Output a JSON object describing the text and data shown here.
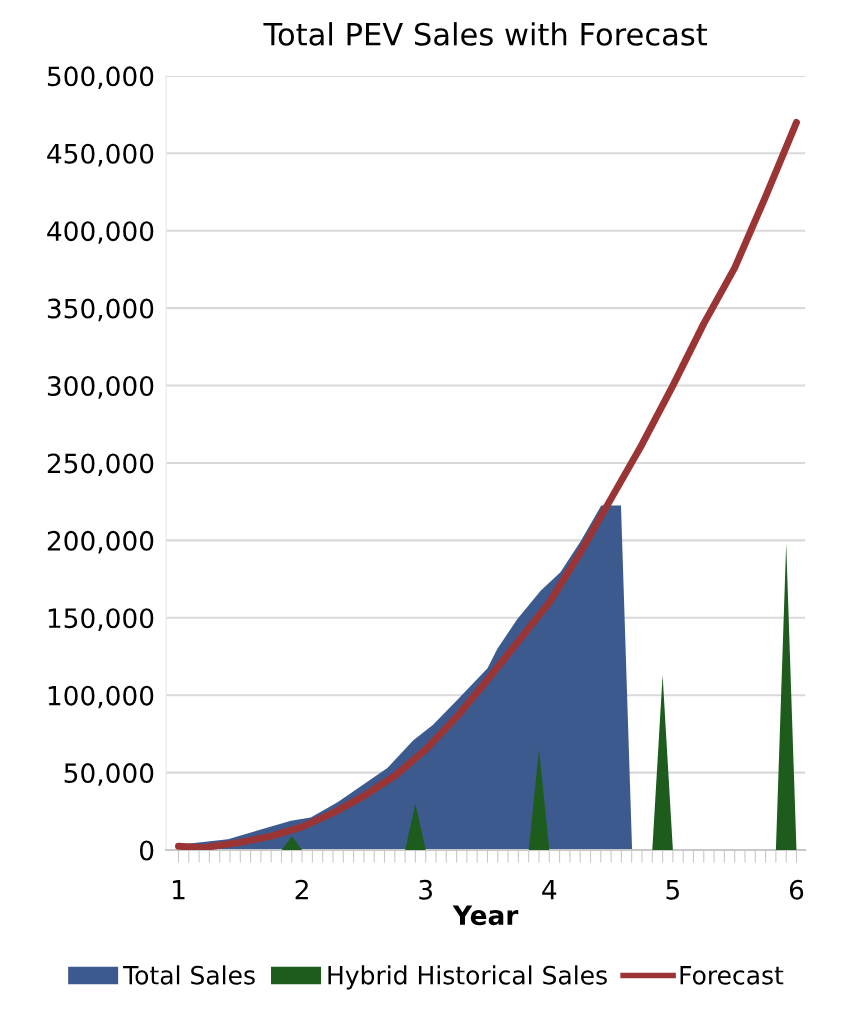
{
  "chart_data": {
    "type": "area",
    "title": "Total PEV Sales with Forecast",
    "xlabel": "Year",
    "series": [
      {
        "name": "Total Sales",
        "color": "#3d5a8f",
        "x": [
          1,
          1.4,
          1.91,
          2.07,
          2.29,
          2.69,
          2.9,
          3.06,
          3.28,
          3.5,
          3.58,
          3.74,
          3.93,
          4.09,
          4.25,
          4.42,
          4.58,
          4.67
        ],
        "values": [
          3500,
          7000,
          19000,
          21000,
          31000,
          53000,
          71000,
          81000,
          99000,
          117500,
          130000,
          149000,
          167500,
          179500,
          199000,
          222500,
          222500,
          0
        ]
      },
      {
        "name": "Hybrid Historical Sales",
        "color": "#1e5c1e",
        "x": [
          1.8333,
          1.9167,
          2.0,
          2.8333,
          2.9167,
          3.0,
          3.8333,
          3.9167,
          4.0,
          4.8333,
          4.9167,
          5.0,
          5.8333,
          5.9167,
          6.0
        ],
        "values": [
          0,
          9000,
          0,
          0,
          30000,
          0,
          0,
          65000,
          0,
          0,
          113000,
          0,
          0,
          198000,
          0
        ]
      },
      {
        "name": "Forecast",
        "type": "line",
        "color": "#9b3535",
        "x": [
          1,
          1.2,
          1.5,
          1.75,
          2,
          2.25,
          2.5,
          2.75,
          3,
          3.25,
          3.5,
          3.75,
          4,
          4.25,
          4.5,
          4.75,
          5,
          5.25,
          5.5,
          5.75,
          6
        ],
        "values": [
          2500,
          1500,
          5000,
          9000,
          15000,
          24000,
          35000,
          48000,
          65000,
          86000,
          110000,
          135000,
          160000,
          192000,
          227000,
          262000,
          300000,
          340000,
          376000,
          422000,
          470000
        ]
      }
    ],
    "xlim": [
      0.9,
      6.07
    ],
    "xticks": [
      1,
      {
        "value": 1.0833,
        "label": null
      },
      {
        "value": 1.1667,
        "label": null
      },
      {
        "value": 1.25,
        "label": null
      },
      {
        "value": 1.3333,
        "label": null
      },
      {
        "value": 1.4167,
        "label": null
      },
      {
        "value": 1.5,
        "label": null
      },
      {
        "value": 1.5833,
        "label": null
      },
      {
        "value": 1.6667,
        "label": null
      },
      {
        "value": 1.75,
        "label": null
      },
      {
        "value": 1.8333,
        "label": null
      },
      {
        "value": 1.9167,
        "label": null
      },
      2,
      {
        "value": 2.0833,
        "label": null
      },
      {
        "value": 2.1667,
        "label": null
      },
      {
        "value": 2.25,
        "label": null
      },
      {
        "value": 2.3333,
        "label": null
      },
      {
        "value": 2.4167,
        "label": null
      },
      {
        "value": 2.5,
        "label": null
      },
      {
        "value": 2.5833,
        "label": null
      },
      {
        "value": 2.6667,
        "label": null
      },
      {
        "value": 2.75,
        "label": null
      },
      {
        "value": 2.8333,
        "label": null
      },
      {
        "value": 2.9167,
        "label": null
      },
      3,
      {
        "value": 3.0833,
        "label": null
      },
      {
        "value": 3.1667,
        "label": null
      },
      {
        "value": 3.25,
        "label": null
      },
      {
        "value": 3.3333,
        "label": null
      },
      {
        "value": 3.4167,
        "label": null
      },
      {
        "value": 3.5,
        "label": null
      },
      {
        "value": 3.5833,
        "label": null
      },
      {
        "value": 3.6667,
        "label": null
      },
      {
        "value": 3.75,
        "label": null
      },
      {
        "value": 3.8333,
        "label": null
      },
      {
        "value": 3.9167,
        "label": null
      },
      4,
      {
        "value": 4.0833,
        "label": null
      },
      {
        "value": 4.1667,
        "label": null
      },
      {
        "value": 4.25,
        "label": null
      },
      {
        "value": 4.3333,
        "label": null
      },
      {
        "value": 4.4167,
        "label": null
      },
      {
        "value": 4.5,
        "label": null
      },
      {
        "value": 4.5833,
        "label": null
      },
      {
        "value": 4.6667,
        "label": null
      },
      {
        "value": 4.75,
        "label": null
      },
      {
        "value": 4.8333,
        "label": null
      },
      {
        "value": 4.9167,
        "label": null
      },
      5,
      {
        "value": 5.0833,
        "label": null
      },
      {
        "value": 5.1667,
        "label": null
      },
      {
        "value": 5.25,
        "label": null
      },
      {
        "value": 5.3333,
        "label": null
      },
      {
        "value": 5.4167,
        "label": null
      },
      {
        "value": 5.5,
        "label": null
      },
      {
        "value": 5.5833,
        "label": null
      },
      {
        "value": 5.6667,
        "label": null
      },
      {
        "value": 5.75,
        "label": null
      },
      {
        "value": 5.8333,
        "label": null
      },
      {
        "value": 5.9167,
        "label": null
      },
      6
    ],
    "ylim": [
      0,
      500000
    ],
    "yticks": [
      {
        "value": 0,
        "label": "0"
      },
      {
        "value": 50000,
        "label": "50,000"
      },
      {
        "value": 100000,
        "label": "100,000"
      },
      {
        "value": 150000,
        "label": "150,000"
      },
      {
        "value": 200000,
        "label": "200,000"
      },
      {
        "value": 250000,
        "label": "250,000"
      },
      {
        "value": 300000,
        "label": "300,000"
      },
      {
        "value": 350000,
        "label": "350,000"
      },
      {
        "value": 400000,
        "label": "400,000"
      },
      {
        "value": 450000,
        "label": "450,000"
      },
      {
        "value": 500000,
        "label": "500,000"
      }
    ],
    "grid": "y",
    "legend": "bottom",
    "line_style": "solid",
    "marker": "none"
  }
}
